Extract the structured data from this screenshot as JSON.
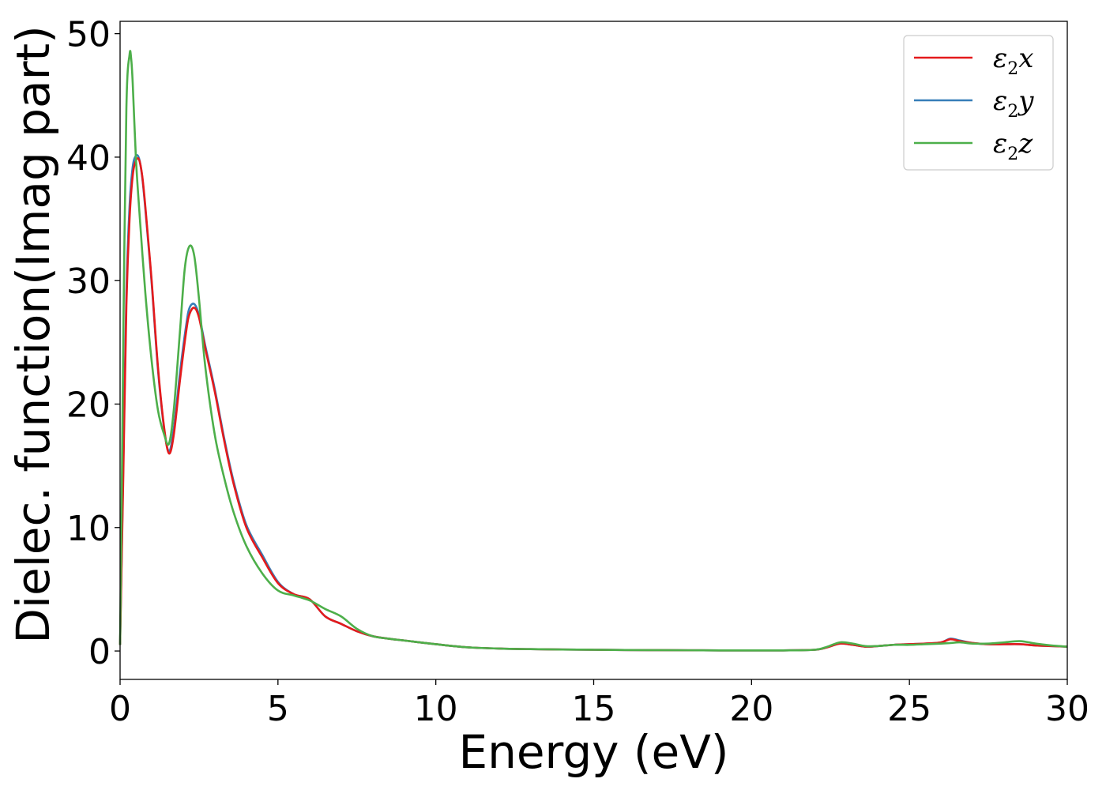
{
  "chart_data": {
    "type": "line",
    "title": "",
    "xlabel": "Energy (eV)",
    "ylabel": "Dielec. function(Imag part)",
    "xlim": [
      0,
      30
    ],
    "ylim": [
      -2.3,
      51
    ],
    "xticks": [
      0,
      5,
      10,
      15,
      20,
      25,
      30
    ],
    "yticks": [
      0,
      10,
      20,
      30,
      40,
      50
    ],
    "grid": false,
    "legend_position": "top-right",
    "series": [
      {
        "name": "ε2x",
        "legend_symbol": "ε",
        "legend_sub": "2",
        "legend_axis": "x",
        "color": "#e41a1c",
        "x": [
          0,
          0.1,
          0.2,
          0.3,
          0.4,
          0.5,
          0.6,
          0.7,
          0.8,
          1.0,
          1.2,
          1.4,
          1.55,
          1.7,
          1.9,
          2.1,
          2.2,
          2.35,
          2.5,
          2.7,
          3.0,
          3.3,
          3.6,
          4.0,
          4.5,
          5.0,
          5.5,
          6.0,
          6.5,
          7.0,
          7.5,
          8.0,
          8.5,
          9.0,
          10,
          11,
          12,
          13,
          14,
          15,
          16,
          17,
          18,
          19,
          20,
          21,
          22,
          22.4,
          22.8,
          23.2,
          23.6,
          24,
          24.5,
          25,
          25.5,
          26,
          26.3,
          26.6,
          27,
          27.5,
          28,
          28.5,
          29,
          29.5,
          30
        ],
        "y": [
          0.5,
          14,
          28,
          35,
          38.5,
          39.7,
          39.8,
          38.5,
          36,
          30,
          23,
          18,
          16,
          17.5,
          22,
          26,
          27.3,
          27.8,
          27,
          24.5,
          21,
          17,
          13.5,
          10,
          7.6,
          5.5,
          4.6,
          4.2,
          2.8,
          2.2,
          1.6,
          1.2,
          1.0,
          0.85,
          0.55,
          0.3,
          0.2,
          0.15,
          0.12,
          0.1,
          0.08,
          0.07,
          0.06,
          0.05,
          0.05,
          0.05,
          0.1,
          0.3,
          0.6,
          0.5,
          0.35,
          0.4,
          0.5,
          0.55,
          0.6,
          0.7,
          0.95,
          0.8,
          0.65,
          0.55,
          0.55,
          0.55,
          0.45,
          0.4,
          0.35
        ]
      },
      {
        "name": "ε2y",
        "legend_symbol": "ε",
        "legend_sub": "2",
        "legend_axis": "y",
        "color": "#377eb8",
        "x": [
          0,
          0.1,
          0.2,
          0.3,
          0.4,
          0.5,
          0.6,
          0.7,
          0.8,
          1.0,
          1.2,
          1.4,
          1.55,
          1.7,
          1.9,
          2.1,
          2.2,
          2.35,
          2.5,
          2.7,
          3.0,
          3.3,
          3.6,
          4.0,
          4.5,
          5.0,
          5.5,
          6.0,
          6.5,
          7.0,
          7.5,
          8.0,
          8.5,
          9.0,
          10,
          11,
          12,
          13,
          14,
          15,
          16,
          17,
          18,
          19,
          20,
          21,
          22,
          22.4,
          22.8,
          23.2,
          23.6,
          24,
          24.5,
          25,
          25.5,
          26,
          26.3,
          26.6,
          27,
          27.5,
          28,
          28.5,
          29,
          29.5,
          30
        ],
        "y": [
          0.5,
          15,
          29,
          36,
          39.2,
          40.1,
          39.9,
          38.4,
          35.8,
          29.8,
          22.8,
          17.9,
          16.2,
          18,
          22.6,
          26.5,
          27.8,
          28.1,
          27.2,
          24.7,
          21.2,
          17.2,
          13.7,
          10.2,
          7.8,
          5.6,
          4.6,
          4.2,
          2.8,
          2.2,
          1.6,
          1.2,
          1.0,
          0.85,
          0.55,
          0.3,
          0.2,
          0.15,
          0.12,
          0.1,
          0.08,
          0.07,
          0.06,
          0.05,
          0.05,
          0.05,
          0.1,
          0.3,
          0.6,
          0.5,
          0.35,
          0.4,
          0.5,
          0.55,
          0.6,
          0.7,
          1.0,
          0.85,
          0.65,
          0.55,
          0.55,
          0.55,
          0.45,
          0.4,
          0.35
        ]
      },
      {
        "name": "ε2z",
        "legend_symbol": "ε",
        "legend_sub": "2",
        "legend_axis": "z",
        "color": "#4daf4a",
        "x": [
          0,
          0.05,
          0.1,
          0.2,
          0.3,
          0.35,
          0.4,
          0.5,
          0.6,
          0.8,
          1.0,
          1.2,
          1.4,
          1.55,
          1.7,
          1.9,
          2.05,
          2.2,
          2.35,
          2.5,
          2.7,
          3.0,
          3.3,
          3.6,
          4.0,
          4.5,
          5.0,
          5.5,
          6.0,
          6.5,
          7.0,
          7.5,
          8.0,
          8.5,
          9.0,
          10,
          11,
          12,
          13,
          14,
          15,
          16,
          17,
          18,
          19,
          20,
          21,
          22,
          22.4,
          22.8,
          23.2,
          23.6,
          24,
          24.5,
          25,
          25.5,
          26,
          26.3,
          26.6,
          27,
          27.5,
          28,
          28.5,
          29,
          29.5,
          30
        ],
        "y": [
          0.5,
          12,
          25,
          44,
          48.3,
          48,
          46,
          40,
          36,
          29,
          23.5,
          19.5,
          17.5,
          16.8,
          19.5,
          26,
          31,
          32.8,
          32,
          28.5,
          23,
          17.5,
          14,
          11.2,
          8.5,
          6.3,
          4.9,
          4.5,
          4.1,
          3.4,
          2.8,
          1.8,
          1.2,
          1.0,
          0.85,
          0.55,
          0.3,
          0.2,
          0.15,
          0.12,
          0.1,
          0.08,
          0.07,
          0.06,
          0.05,
          0.05,
          0.05,
          0.1,
          0.35,
          0.7,
          0.6,
          0.4,
          0.4,
          0.5,
          0.5,
          0.55,
          0.6,
          0.65,
          0.7,
          0.6,
          0.6,
          0.7,
          0.8,
          0.6,
          0.45,
          0.35
        ]
      }
    ]
  }
}
